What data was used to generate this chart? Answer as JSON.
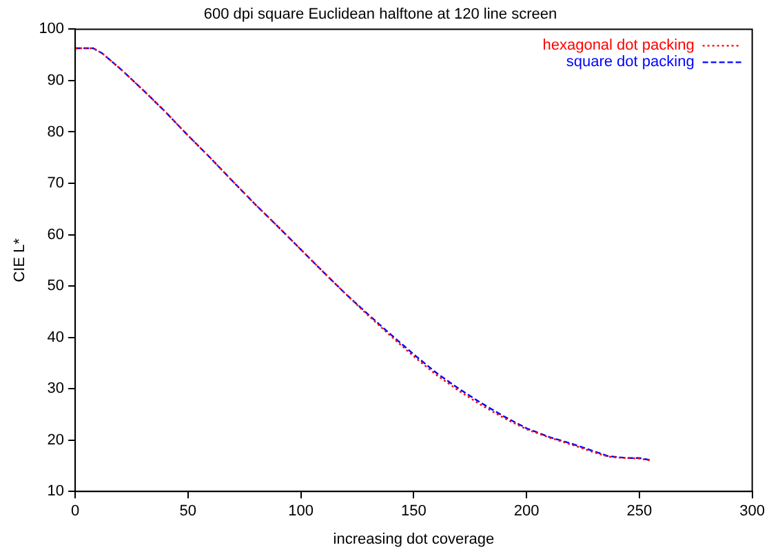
{
  "chart_data": {
    "type": "line",
    "title": "600 dpi square Euclidean halftone at 120 line screen",
    "xlabel": "increasing dot coverage",
    "ylabel": "CIE L*",
    "xlim": [
      0,
      300
    ],
    "xticks": [
      0,
      50,
      100,
      150,
      200,
      250,
      300
    ],
    "ylim": [
      10,
      100
    ],
    "yticks": [
      10,
      20,
      30,
      40,
      50,
      60,
      70,
      80,
      90,
      100
    ],
    "grid": false,
    "legend": "top right",
    "marker": "none",
    "series": [
      {
        "name": "hexagonal dot packing",
        "color": "#ff0000",
        "line_style": "dotted",
        "x": [
          0,
          8,
          12,
          20,
          30,
          40,
          50,
          60,
          70,
          80,
          90,
          100,
          110,
          120,
          130,
          140,
          150,
          160,
          170,
          180,
          190,
          200,
          210,
          220,
          230,
          236,
          240,
          245,
          250,
          255
        ],
        "values": [
          96.3,
          96.3,
          95.3,
          92.3,
          88.2,
          83.9,
          79.3,
          74.9,
          70.3,
          65.8,
          61.5,
          57.1,
          52.7,
          48.4,
          44.2,
          40.2,
          36.3,
          32.7,
          29.6,
          26.8,
          24.3,
          22.1,
          20.5,
          19.1,
          17.6,
          16.8,
          16.6,
          16.5,
          16.4,
          16.0
        ]
      },
      {
        "name": "square dot packing",
        "color": "#0000ff",
        "line_style": "dashed",
        "x": [
          0,
          8,
          12,
          20,
          30,
          40,
          50,
          60,
          70,
          80,
          90,
          100,
          110,
          120,
          130,
          140,
          150,
          160,
          170,
          180,
          190,
          200,
          210,
          220,
          230,
          236,
          240,
          245,
          250,
          255
        ],
        "values": [
          96.3,
          96.3,
          95.3,
          92.3,
          88.2,
          83.9,
          79.3,
          74.9,
          70.3,
          65.8,
          61.5,
          57.1,
          52.7,
          48.4,
          44.4,
          40.5,
          36.7,
          33.1,
          30.0,
          27.2,
          24.6,
          22.3,
          20.6,
          19.3,
          17.8,
          16.9,
          16.7,
          16.5,
          16.5,
          16.1
        ]
      }
    ]
  }
}
